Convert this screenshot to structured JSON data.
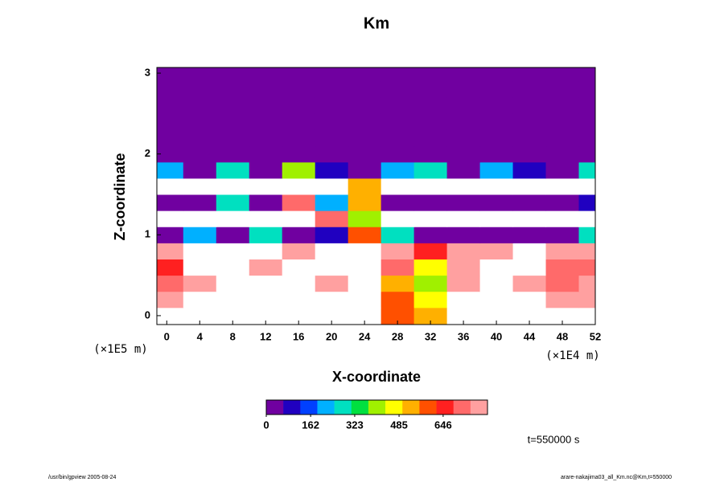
{
  "chart_data": {
    "type": "heatmap",
    "title": "Km",
    "x_label": "X-coordinate",
    "y_label": "Z-coordinate",
    "x_unit_label": "(×1E4 m)",
    "y_unit_label": "(×1E5 m)",
    "time_label": "t=550000 s",
    "footer_left": "/usr/bin/gpview 2005-08-24",
    "footer_right": "arare-nakajima03_all_Km.nc@Km,t=550000",
    "x": [
      0,
      4,
      8,
      12,
      16,
      20,
      24,
      28,
      32,
      36,
      40,
      44,
      48,
      52
    ],
    "y": [
      0,
      0.2,
      0.4,
      0.6,
      0.8,
      1.0,
      1.2,
      1.4,
      1.6,
      1.8,
      2.0,
      2.2,
      2.4,
      2.6,
      2.8,
      3.0
    ],
    "values": [
      [
        900,
        900,
        900,
        900,
        900,
        900,
        900,
        600,
        500,
        900,
        900,
        900,
        900,
        900
      ],
      [
        750,
        900,
        900,
        900,
        900,
        900,
        900,
        600,
        450,
        900,
        900,
        900,
        750,
        750
      ],
      [
        700,
        750,
        900,
        900,
        900,
        750,
        900,
        500,
        400,
        750,
        900,
        750,
        720,
        750
      ],
      [
        650,
        900,
        900,
        750,
        900,
        900,
        900,
        700,
        450,
        750,
        900,
        900,
        700,
        720
      ],
      [
        750,
        900,
        900,
        900,
        800,
        900,
        900,
        750,
        650,
        800,
        800,
        850,
        750,
        750
      ],
      [
        0,
        200,
        0,
        300,
        0,
        100,
        600,
        300,
        0,
        0,
        50,
        0,
        0,
        300
      ],
      [
        900,
        900,
        900,
        900,
        900,
        700,
        400,
        900,
        900,
        900,
        900,
        900,
        900,
        900
      ],
      [
        0,
        0,
        300,
        0,
        700,
        200,
        500,
        0,
        0,
        0,
        0,
        0,
        0,
        100
      ],
      [
        900,
        900,
        900,
        900,
        900,
        900,
        500,
        900,
        900,
        900,
        900,
        900,
        900,
        900
      ],
      [
        200,
        0,
        300,
        0,
        400,
        100,
        0,
        200,
        300,
        0,
        200,
        100,
        0,
        250
      ],
      [
        0,
        0,
        0,
        0,
        0,
        0,
        0,
        0,
        0,
        0,
        0,
        0,
        0,
        0
      ],
      [
        0,
        0,
        0,
        0,
        0,
        0,
        0,
        0,
        0,
        0,
        0,
        0,
        0,
        0
      ],
      [
        0,
        0,
        0,
        0,
        0,
        0,
        0,
        0,
        0,
        0,
        0,
        0,
        0,
        0
      ],
      [
        0,
        0,
        0,
        0,
        0,
        0,
        0,
        0,
        0,
        0,
        0,
        0,
        0,
        0
      ],
      [
        0,
        0,
        0,
        0,
        0,
        0,
        0,
        0,
        0,
        0,
        0,
        0,
        0,
        0
      ],
      [
        0,
        0,
        0,
        0,
        0,
        0,
        0,
        0,
        0,
        0,
        0,
        0,
        0,
        0
      ]
    ],
    "xlim": [
      -1.2,
      52
    ],
    "ylim": [
      -0.11,
      3.07
    ],
    "xticks": [
      0,
      4,
      8,
      12,
      16,
      20,
      24,
      28,
      32,
      36,
      40,
      44,
      48,
      52
    ],
    "yticks": [
      0,
      1,
      2,
      3
    ],
    "clim": [
      0,
      808
    ],
    "cticks": [
      0,
      162,
      323,
      485,
      646
    ],
    "colormap": [
      "#7000a0",
      "#2000c0",
      "#0040ff",
      "#00b0ff",
      "#00e0c0",
      "#00e040",
      "#a0f000",
      "#ffff00",
      "#ffb000",
      "#ff5000",
      "#ff2020",
      "#ff6a6a",
      "#ffa0a0"
    ],
    "over_color": "#ffffff"
  }
}
